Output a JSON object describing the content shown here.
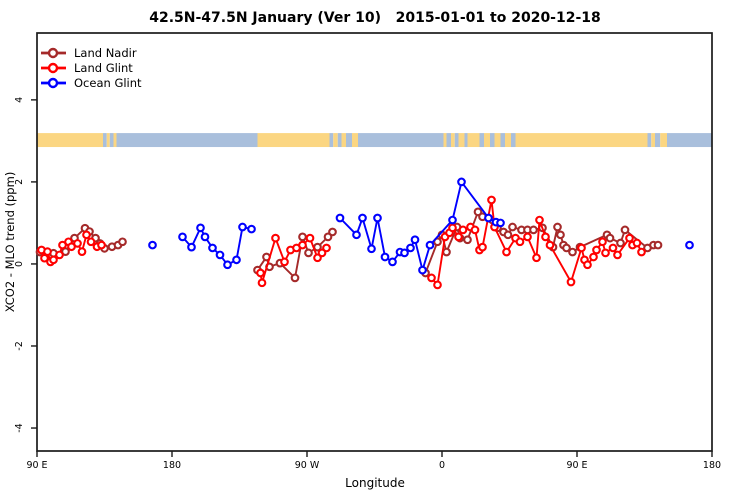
{
  "title": "42.5N-47.5N January (Ver 10)   2015-01-01 to 2020-12-18",
  "chart_data": {
    "type": "scatter",
    "title": "42.5N-47.5N January (Ver 10)   2015-01-01 to 2020-12-18",
    "xlabel": "Longitude",
    "ylabel": "XCO2 - MLO trend (ppm)",
    "xlim": [
      90,
      540
    ],
    "ylim": [
      -4.56,
      5.63
    ],
    "x_ticks": [
      {
        "value": 90,
        "label": "90 E"
      },
      {
        "value": 180,
        "label": "180"
      },
      {
        "value": 270,
        "label": "90 W"
      },
      {
        "value": 360,
        "label": "0"
      },
      {
        "value": 450,
        "label": "90 E"
      },
      {
        "value": 540,
        "label": "180"
      }
    ],
    "y_ticks": [
      {
        "value": -4,
        "label": "-4"
      },
      {
        "value": -2,
        "label": "-2"
      },
      {
        "value": 0,
        "label": "0"
      },
      {
        "value": 2,
        "label": "2"
      },
      {
        "value": 4,
        "label": "4"
      }
    ],
    "legend_position": "top-left",
    "grid": false,
    "map_strip": {
      "description": "land/ocean strip along 42.5N-47.5N",
      "y_band": [
        2.85,
        3.19
      ],
      "land_color": "#FBD682",
      "ocean_color": "#A9BFDC",
      "segments": [
        {
          "from": 90,
          "to": 134,
          "type": "land"
        },
        {
          "from": 134,
          "to": 136.5,
          "type": "ocean"
        },
        {
          "from": 136.5,
          "to": 138.5,
          "type": "land"
        },
        {
          "from": 138.5,
          "to": 141,
          "type": "ocean"
        },
        {
          "from": 141,
          "to": 143,
          "type": "land"
        },
        {
          "from": 143,
          "to": 237,
          "type": "ocean"
        },
        {
          "from": 237,
          "to": 285,
          "type": "land"
        },
        {
          "from": 285,
          "to": 287.5,
          "type": "ocean"
        },
        {
          "from": 287.5,
          "to": 290.5,
          "type": "land"
        },
        {
          "from": 290.5,
          "to": 293,
          "type": "ocean"
        },
        {
          "from": 293,
          "to": 296,
          "type": "land"
        },
        {
          "from": 296,
          "to": 300,
          "type": "ocean"
        },
        {
          "from": 300,
          "to": 304,
          "type": "land"
        },
        {
          "from": 304,
          "to": 361,
          "type": "ocean"
        },
        {
          "from": 361,
          "to": 363,
          "type": "land"
        },
        {
          "from": 363,
          "to": 366,
          "type": "ocean"
        },
        {
          "from": 366,
          "to": 368.5,
          "type": "land"
        },
        {
          "from": 368.5,
          "to": 371,
          "type": "ocean"
        },
        {
          "from": 371,
          "to": 375,
          "type": "land"
        },
        {
          "from": 375,
          "to": 377,
          "type": "ocean"
        },
        {
          "from": 377,
          "to": 385,
          "type": "land"
        },
        {
          "from": 385,
          "to": 388,
          "type": "ocean"
        },
        {
          "from": 388,
          "to": 392,
          "type": "land"
        },
        {
          "from": 392,
          "to": 395,
          "type": "ocean"
        },
        {
          "from": 395,
          "to": 399,
          "type": "land"
        },
        {
          "from": 399,
          "to": 402,
          "type": "ocean"
        },
        {
          "from": 402,
          "to": 406,
          "type": "land"
        },
        {
          "from": 406,
          "to": 409,
          "type": "ocean"
        },
        {
          "from": 409,
          "to": 497,
          "type": "land"
        },
        {
          "from": 497,
          "to": 499.5,
          "type": "ocean"
        },
        {
          "from": 499.5,
          "to": 502,
          "type": "land"
        },
        {
          "from": 502,
          "to": 505.5,
          "type": "ocean"
        },
        {
          "from": 505.5,
          "to": 510,
          "type": "land"
        },
        {
          "from": 510,
          "to": 540,
          "type": "ocean"
        }
      ]
    },
    "series": [
      {
        "name": "Land Nadir",
        "color": "#A52A2A",
        "marker": "open-circle",
        "groups": [
          [
            [
              92,
              0.29
            ],
            [
              101,
              0.26
            ],
            [
              109,
              0.3
            ],
            [
              115,
              0.63
            ],
            [
              122,
              0.87
            ],
            [
              125,
              0.79
            ],
            [
              129,
              0.63
            ],
            [
              132,
              0.5
            ],
            [
              135,
              0.38
            ],
            [
              140,
              0.42
            ],
            [
              144,
              0.46
            ],
            [
              147,
              0.54
            ]
          ],
          [
            [
              237,
              -0.15
            ],
            [
              243,
              0.17
            ],
            [
              245,
              -0.07
            ],
            [
              252,
              0.02
            ],
            [
              262,
              -0.34
            ],
            [
              267,
              0.66
            ],
            [
              271,
              0.27
            ],
            [
              277,
              0.41
            ],
            [
              284,
              0.66
            ],
            [
              287,
              0.78
            ]
          ],
          [
            [
              349,
              -0.22
            ],
            [
              357,
              0.54
            ],
            [
              360,
              0.71
            ],
            [
              363,
              0.29
            ],
            [
              370,
              0.9
            ],
            [
              372,
              0.63
            ],
            [
              377,
              0.59
            ],
            [
              384,
              1.27
            ],
            [
              387,
              1.15
            ],
            [
              397,
              0.88
            ],
            [
              401,
              0.78
            ],
            [
              404,
              0.71
            ],
            [
              407,
              0.9
            ],
            [
              413,
              0.83
            ],
            [
              417,
              0.83
            ],
            [
              421,
              0.83
            ],
            [
              427,
              0.88
            ],
            [
              434,
              0.41
            ],
            [
              437,
              0.9
            ],
            [
              439,
              0.71
            ],
            [
              441,
              0.46
            ],
            [
              443,
              0.39
            ],
            [
              447,
              0.29
            ],
            [
              452,
              0.41
            ],
            [
              470,
              0.71
            ],
            [
              472,
              0.63
            ],
            [
              479,
              0.51
            ],
            [
              482,
              0.83
            ],
            [
              497,
              0.39
            ],
            [
              501,
              0.46
            ],
            [
              504,
              0.46
            ]
          ]
        ]
      },
      {
        "name": "Land Glint",
        "color": "#FF0000",
        "marker": "open-circle",
        "groups": [
          [
            [
              93,
              0.34
            ],
            [
              95,
              0.14
            ],
            [
              97,
              0.3
            ],
            [
              99,
              0.05
            ],
            [
              101,
              0.1
            ],
            [
              105,
              0.22
            ],
            [
              107,
              0.46
            ],
            [
              111,
              0.54
            ],
            [
              113,
              0.42
            ],
            [
              117,
              0.5
            ],
            [
              120,
              0.3
            ],
            [
              123,
              0.71
            ],
            [
              126,
              0.54
            ],
            [
              130,
              0.42
            ],
            [
              133,
              0.46
            ]
          ],
          [
            [
              239,
              -0.22
            ],
            [
              240,
              -0.46
            ],
            [
              249,
              0.63
            ],
            [
              255,
              0.05
            ],
            [
              259,
              0.34
            ],
            [
              263,
              0.39
            ],
            [
              267,
              0.46
            ],
            [
              272,
              0.63
            ],
            [
              277,
              0.15
            ],
            [
              280,
              0.27
            ],
            [
              283,
              0.39
            ]
          ],
          [
            [
              353,
              -0.34
            ],
            [
              357,
              -0.51
            ],
            [
              362,
              0.66
            ],
            [
              365,
              0.76
            ],
            [
              367,
              0.88
            ],
            [
              371,
              0.66
            ],
            [
              374,
              0.83
            ],
            [
              379,
              0.9
            ],
            [
              382,
              0.83
            ],
            [
              385,
              0.34
            ],
            [
              387,
              0.41
            ],
            [
              393,
              1.56
            ],
            [
              395,
              0.9
            ],
            [
              403,
              0.29
            ],
            [
              409,
              0.63
            ],
            [
              412,
              0.54
            ],
            [
              417,
              0.66
            ],
            [
              423,
              0.15
            ],
            [
              425,
              1.07
            ],
            [
              429,
              0.66
            ],
            [
              432,
              0.46
            ],
            [
              446,
              -0.44
            ],
            [
              453,
              0.39
            ],
            [
              455,
              0.1
            ],
            [
              457,
              -0.02
            ],
            [
              461,
              0.17
            ],
            [
              463,
              0.34
            ],
            [
              467,
              0.54
            ],
            [
              469,
              0.27
            ],
            [
              474,
              0.39
            ],
            [
              477,
              0.22
            ],
            [
              485,
              0.63
            ],
            [
              487,
              0.46
            ],
            [
              490,
              0.51
            ],
            [
              493,
              0.29
            ]
          ]
        ]
      },
      {
        "name": "Ocean Glint",
        "color": "#0000FF",
        "marker": "open-circle",
        "groups": [
          [
            [
              167,
              0.46
            ]
          ],
          [
            [
              187,
              0.66
            ],
            [
              193,
              0.41
            ],
            [
              199,
              0.88
            ],
            [
              202,
              0.66
            ],
            [
              207,
              0.39
            ],
            [
              212,
              0.22
            ],
            [
              217,
              -0.02
            ],
            [
              223,
              0.1
            ],
            [
              227,
              0.9
            ],
            [
              233,
              0.85
            ]
          ],
          [
            [
              292,
              1.12
            ],
            [
              303,
              0.71
            ],
            [
              307,
              1.12
            ],
            [
              313,
              0.37
            ],
            [
              317,
              1.12
            ],
            [
              322,
              0.17
            ],
            [
              327,
              0.05
            ],
            [
              332,
              0.29
            ],
            [
              335,
              0.27
            ],
            [
              339,
              0.39
            ],
            [
              342,
              0.59
            ],
            [
              347,
              -0.15
            ],
            [
              352,
              0.46
            ],
            [
              367,
              1.07
            ],
            [
              373,
              2.0
            ],
            [
              391,
              1.12
            ],
            [
              396,
              1.02
            ],
            [
              399,
              1.0
            ]
          ],
          [
            [
              525,
              0.46
            ]
          ]
        ]
      }
    ]
  }
}
